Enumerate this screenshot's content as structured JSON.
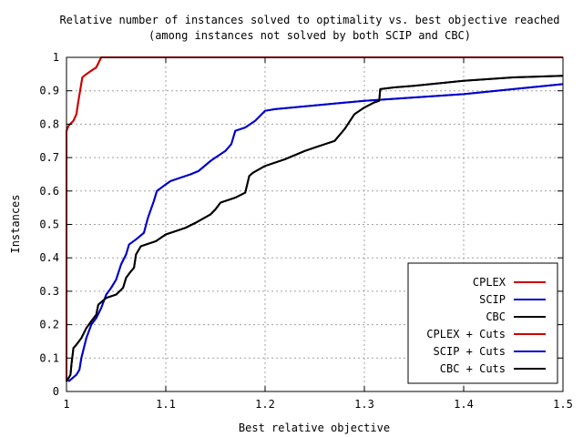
{
  "chart_data": {
    "type": "line",
    "title": "Relative number of instances solved to optimality vs. best objective reached",
    "subtitle": "(among instances not solved by both SCIP and CBC)",
    "xlabel": "Best relative objective",
    "ylabel": "Instances",
    "xlim": [
      1,
      1.5
    ],
    "ylim": [
      0,
      1
    ],
    "x_ticks": [
      1,
      1.1,
      1.2,
      1.3,
      1.4,
      1.5
    ],
    "x_tick_labels": [
      "1",
      "1.1",
      "1.2",
      "1.3",
      "1.4",
      "1.5"
    ],
    "y_ticks": [
      0,
      0.1,
      0.2,
      0.3,
      0.4,
      0.5,
      0.6,
      0.7,
      0.8,
      0.9,
      1
    ],
    "y_tick_labels": [
      "0",
      "0.1",
      "0.2",
      "0.3",
      "0.4",
      "0.5",
      "0.6",
      "0.7",
      "0.8",
      "0.9",
      "1"
    ],
    "grid": true,
    "legend_position": "bottom-right",
    "series": [
      {
        "name": "CPLEX",
        "color": "#cc0000",
        "points": [
          [
            1.0,
            0.03
          ],
          [
            1.0,
            0.78
          ],
          [
            1.002,
            0.795
          ],
          [
            1.007,
            0.81
          ],
          [
            1.01,
            0.83
          ],
          [
            1.012,
            0.87
          ],
          [
            1.016,
            0.94
          ],
          [
            1.02,
            0.95
          ],
          [
            1.025,
            0.96
          ],
          [
            1.03,
            0.97
          ],
          [
            1.035,
            1.0
          ],
          [
            1.5,
            1.0
          ]
        ]
      },
      {
        "name": "SCIP",
        "color": "#0000cc",
        "points": [
          [
            1.002,
            0.03
          ],
          [
            1.01,
            0.05
          ],
          [
            1.013,
            0.065
          ],
          [
            1.015,
            0.1
          ],
          [
            1.02,
            0.16
          ],
          [
            1.025,
            0.2
          ],
          [
            1.03,
            0.22
          ],
          [
            1.035,
            0.25
          ],
          [
            1.04,
            0.29
          ],
          [
            1.045,
            0.31
          ],
          [
            1.05,
            0.335
          ],
          [
            1.055,
            0.38
          ],
          [
            1.06,
            0.41
          ],
          [
            1.063,
            0.44
          ],
          [
            1.07,
            0.455
          ],
          [
            1.078,
            0.475
          ],
          [
            1.082,
            0.52
          ],
          [
            1.088,
            0.57
          ],
          [
            1.091,
            0.6
          ],
          [
            1.1,
            0.62
          ],
          [
            1.105,
            0.63
          ],
          [
            1.125,
            0.65
          ],
          [
            1.133,
            0.66
          ],
          [
            1.145,
            0.69
          ],
          [
            1.15,
            0.7
          ],
          [
            1.16,
            0.72
          ],
          [
            1.166,
            0.74
          ],
          [
            1.17,
            0.78
          ],
          [
            1.18,
            0.79
          ],
          [
            1.19,
            0.81
          ],
          [
            1.2,
            0.84
          ],
          [
            1.21,
            0.845
          ],
          [
            1.3,
            0.87
          ],
          [
            1.4,
            0.89
          ],
          [
            1.5,
            0.92
          ]
        ]
      },
      {
        "name": "CBC",
        "color": "#000000",
        "points": [
          [
            1.0,
            0.03
          ],
          [
            1.004,
            0.05
          ],
          [
            1.005,
            0.08
          ],
          [
            1.007,
            0.13
          ],
          [
            1.01,
            0.14
          ],
          [
            1.015,
            0.16
          ],
          [
            1.02,
            0.19
          ],
          [
            1.025,
            0.21
          ],
          [
            1.03,
            0.23
          ],
          [
            1.032,
            0.26
          ],
          [
            1.04,
            0.28
          ],
          [
            1.05,
            0.29
          ],
          [
            1.057,
            0.31
          ],
          [
            1.06,
            0.34
          ],
          [
            1.065,
            0.36
          ],
          [
            1.068,
            0.37
          ],
          [
            1.07,
            0.41
          ],
          [
            1.075,
            0.435
          ],
          [
            1.09,
            0.45
          ],
          [
            1.1,
            0.47
          ],
          [
            1.12,
            0.49
          ],
          [
            1.13,
            0.505
          ],
          [
            1.145,
            0.53
          ],
          [
            1.15,
            0.545
          ],
          [
            1.155,
            0.565
          ],
          [
            1.17,
            0.58
          ],
          [
            1.18,
            0.595
          ],
          [
            1.184,
            0.645
          ],
          [
            1.188,
            0.655
          ],
          [
            1.2,
            0.675
          ],
          [
            1.22,
            0.695
          ],
          [
            1.24,
            0.72
          ],
          [
            1.25,
            0.73
          ],
          [
            1.26,
            0.74
          ],
          [
            1.27,
            0.75
          ],
          [
            1.28,
            0.785
          ],
          [
            1.29,
            0.83
          ],
          [
            1.3,
            0.85
          ],
          [
            1.31,
            0.865
          ],
          [
            1.315,
            0.87
          ],
          [
            1.316,
            0.905
          ],
          [
            1.33,
            0.91
          ],
          [
            1.35,
            0.915
          ],
          [
            1.4,
            0.93
          ],
          [
            1.45,
            0.94
          ],
          [
            1.5,
            0.945
          ]
        ]
      },
      {
        "name": "CPLEX + Cuts",
        "color": "#cc0000",
        "points": [
          [
            1.0,
            0.03
          ],
          [
            1.0,
            0.78
          ],
          [
            1.002,
            0.795
          ],
          [
            1.007,
            0.81
          ],
          [
            1.01,
            0.83
          ],
          [
            1.012,
            0.87
          ],
          [
            1.016,
            0.94
          ],
          [
            1.02,
            0.95
          ],
          [
            1.025,
            0.96
          ],
          [
            1.03,
            0.97
          ],
          [
            1.035,
            1.0
          ],
          [
            1.5,
            1.0
          ]
        ]
      },
      {
        "name": "SCIP + Cuts",
        "color": "#0000cc",
        "points": [
          [
            1.002,
            0.03
          ],
          [
            1.01,
            0.05
          ],
          [
            1.013,
            0.065
          ],
          [
            1.015,
            0.1
          ],
          [
            1.02,
            0.16
          ],
          [
            1.025,
            0.2
          ],
          [
            1.03,
            0.22
          ],
          [
            1.035,
            0.25
          ],
          [
            1.04,
            0.29
          ],
          [
            1.045,
            0.31
          ],
          [
            1.05,
            0.335
          ],
          [
            1.055,
            0.38
          ],
          [
            1.06,
            0.41
          ],
          [
            1.063,
            0.44
          ],
          [
            1.07,
            0.455
          ],
          [
            1.078,
            0.475
          ],
          [
            1.082,
            0.52
          ],
          [
            1.088,
            0.57
          ],
          [
            1.091,
            0.6
          ],
          [
            1.1,
            0.62
          ],
          [
            1.105,
            0.63
          ],
          [
            1.125,
            0.65
          ],
          [
            1.133,
            0.66
          ],
          [
            1.145,
            0.69
          ],
          [
            1.15,
            0.7
          ],
          [
            1.16,
            0.72
          ],
          [
            1.166,
            0.74
          ],
          [
            1.17,
            0.78
          ],
          [
            1.18,
            0.79
          ],
          [
            1.19,
            0.81
          ],
          [
            1.2,
            0.84
          ],
          [
            1.21,
            0.845
          ],
          [
            1.3,
            0.87
          ],
          [
            1.4,
            0.89
          ],
          [
            1.5,
            0.92
          ]
        ]
      },
      {
        "name": "CBC + Cuts",
        "color": "#000000",
        "points": [
          [
            1.0,
            0.03
          ],
          [
            1.004,
            0.05
          ],
          [
            1.005,
            0.08
          ],
          [
            1.007,
            0.13
          ],
          [
            1.01,
            0.14
          ],
          [
            1.015,
            0.16
          ],
          [
            1.02,
            0.19
          ],
          [
            1.025,
            0.21
          ],
          [
            1.03,
            0.23
          ],
          [
            1.032,
            0.26
          ],
          [
            1.04,
            0.28
          ],
          [
            1.05,
            0.29
          ],
          [
            1.057,
            0.31
          ],
          [
            1.06,
            0.34
          ],
          [
            1.065,
            0.36
          ],
          [
            1.068,
            0.37
          ],
          [
            1.07,
            0.41
          ],
          [
            1.075,
            0.435
          ],
          [
            1.09,
            0.45
          ],
          [
            1.1,
            0.47
          ],
          [
            1.12,
            0.49
          ],
          [
            1.13,
            0.505
          ],
          [
            1.145,
            0.53
          ],
          [
            1.15,
            0.545
          ],
          [
            1.155,
            0.565
          ],
          [
            1.17,
            0.58
          ],
          [
            1.18,
            0.595
          ],
          [
            1.184,
            0.645
          ],
          [
            1.188,
            0.655
          ],
          [
            1.2,
            0.675
          ],
          [
            1.22,
            0.695
          ],
          [
            1.24,
            0.72
          ],
          [
            1.25,
            0.73
          ],
          [
            1.26,
            0.74
          ],
          [
            1.27,
            0.75
          ],
          [
            1.28,
            0.785
          ],
          [
            1.29,
            0.83
          ],
          [
            1.3,
            0.85
          ],
          [
            1.31,
            0.865
          ],
          [
            1.315,
            0.87
          ],
          [
            1.316,
            0.905
          ],
          [
            1.33,
            0.91
          ],
          [
            1.35,
            0.915
          ],
          [
            1.4,
            0.93
          ],
          [
            1.45,
            0.94
          ],
          [
            1.5,
            0.945
          ]
        ]
      }
    ]
  }
}
